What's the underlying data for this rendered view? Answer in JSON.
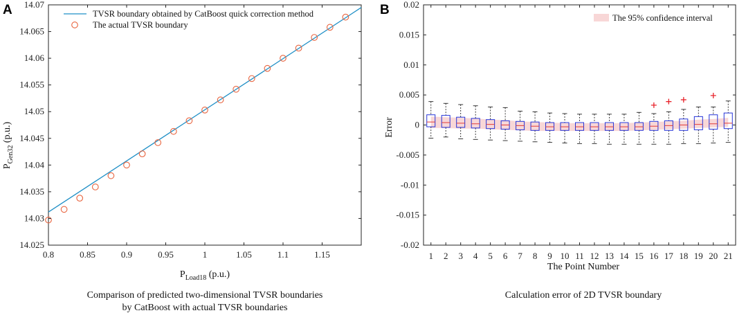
{
  "figure": {
    "panel_a_letter": "A",
    "panel_b_letter": "B",
    "caption_a_line1": "Comparison of predicted two-dimensional TVSR boundaries",
    "caption_a_line2": "by CatBoost with actual TVSR boundaries",
    "caption_b": "Calculation error of 2D TVSR boundary"
  },
  "colors": {
    "line": "#1f8fc6",
    "marker": "#e8623c",
    "box": "#2432d8",
    "median": "#e03a3a",
    "outlier": "#e8222a",
    "band": "#f6c9c9"
  },
  "chart_data": [
    {
      "type": "line",
      "title": "",
      "xlabel": "P",
      "xlabel_sub": "Load18",
      "xlabel_unit": "(p.u.)",
      "ylabel": "P",
      "ylabel_sub": "Gen32",
      "ylabel_unit": "(p.u.)",
      "xlim": [
        0.8,
        1.2
      ],
      "ylim": [
        14.025,
        14.07
      ],
      "xticks": [
        "0.8",
        "0.85",
        "0.9",
        "0.95",
        "1",
        "1.05",
        "1.1",
        "1.15"
      ],
      "yticks": [
        "14.025",
        "14.03",
        "14.035",
        "14.04",
        "14.045",
        "14.05",
        "14.055",
        "14.06",
        "14.065",
        "14.07"
      ],
      "legend": [
        "TVSR boundary obtained by CatBoost quick correction method",
        "The actual TVSR boundary"
      ],
      "series": [
        {
          "name": "TVSR boundary obtained by CatBoost quick correction method",
          "style": "line",
          "x": [
            0.8,
            1.2
          ],
          "y": [
            14.0312,
            14.0695
          ]
        },
        {
          "name": "The actual TVSR boundary",
          "style": "circle",
          "x": [
            0.8,
            0.82,
            0.84,
            0.86,
            0.88,
            0.9,
            0.92,
            0.94,
            0.96,
            0.98,
            1.0,
            1.02,
            1.04,
            1.06,
            1.08,
            1.1,
            1.12,
            1.14,
            1.16,
            1.18
          ],
          "y": [
            14.0297,
            14.0317,
            14.0338,
            14.0359,
            14.038,
            14.04,
            14.0421,
            14.0442,
            14.0463,
            14.0483,
            14.0503,
            14.0522,
            14.0542,
            14.0562,
            14.0581,
            14.06,
            14.0619,
            14.0639,
            14.0658,
            14.0677
          ]
        }
      ]
    },
    {
      "type": "box",
      "title": "",
      "xlabel": "The Point Number",
      "ylabel": "Error",
      "ylim": [
        -0.02,
        0.02
      ],
      "yticks": [
        "-0.02",
        "-0.015",
        "-0.01",
        "-0.005",
        "0",
        "0.005",
        "0.01",
        "0.015",
        "0.02"
      ],
      "categories": [
        "1",
        "2",
        "3",
        "4",
        "5",
        "6",
        "7",
        "8",
        "9",
        "10",
        "11",
        "12",
        "13",
        "14",
        "15",
        "16",
        "17",
        "18",
        "19",
        "20",
        "21"
      ],
      "legend": [
        "The 95% confidence interval"
      ],
      "confidence_band": {
        "lower": [
          -0.0005,
          -0.0005,
          -0.0006,
          -0.0006,
          -0.0007,
          -0.0008,
          -0.0009,
          -0.001,
          -0.001,
          -0.001,
          -0.001,
          -0.001,
          -0.001,
          -0.001,
          -0.0009,
          -0.0008,
          -0.0007,
          -0.0006,
          -0.0005,
          -0.0004,
          -0.0003
        ],
        "upper": [
          0.0014,
          0.0013,
          0.0012,
          0.0011,
          0.0009,
          0.0008,
          0.0006,
          0.0005,
          0.0004,
          0.0003,
          0.0003,
          0.0003,
          0.0003,
          0.0003,
          0.0004,
          0.0005,
          0.0006,
          0.0007,
          0.0009,
          0.001,
          0.0012
        ]
      },
      "whisker_low": [
        -0.0022,
        -0.002,
        -0.0023,
        -0.0024,
        -0.0025,
        -0.0026,
        -0.0027,
        -0.0028,
        -0.0029,
        -0.003,
        -0.0031,
        -0.0031,
        -0.0032,
        -0.0032,
        -0.0032,
        -0.0032,
        -0.0032,
        -0.0031,
        -0.0031,
        -0.003,
        -0.0029
      ],
      "q1": [
        -0.0003,
        -0.0004,
        -0.0004,
        -0.0005,
        -0.0006,
        -0.0007,
        -0.0008,
        -0.0009,
        -0.0009,
        -0.0009,
        -0.0009,
        -0.0009,
        -0.0009,
        -0.0009,
        -0.0009,
        -0.0009,
        -0.0009,
        -0.0009,
        -0.0008,
        -0.0007,
        -0.0006
      ],
      "median": [
        0.0005,
        0.0004,
        0.0003,
        0.0002,
        0.0001,
        0.0,
        -0.0001,
        -0.0002,
        -0.0003,
        -0.0003,
        -0.0003,
        -0.0003,
        -0.0003,
        -0.0003,
        -0.0003,
        -0.0002,
        -0.0001,
        0.0,
        0.0001,
        0.0002,
        0.0003
      ],
      "q3": [
        0.0017,
        0.0016,
        0.0013,
        0.0011,
        0.0009,
        0.0007,
        0.0006,
        0.0005,
        0.0004,
        0.0004,
        0.0004,
        0.0004,
        0.0004,
        0.0004,
        0.0004,
        0.0006,
        0.0007,
        0.001,
        0.0014,
        0.0017,
        0.002
      ],
      "whisker_high": [
        0.0039,
        0.0036,
        0.0034,
        0.0032,
        0.003,
        0.0029,
        0.0023,
        0.0022,
        0.002,
        0.0019,
        0.0018,
        0.0018,
        0.0018,
        0.0018,
        0.0021,
        0.0019,
        0.0022,
        0.0026,
        0.003,
        0.003,
        0.004
      ],
      "outliers": [
        {
          "index": 16,
          "value": 0.0033
        },
        {
          "index": 17,
          "value": 0.0039
        },
        {
          "index": 18,
          "value": 0.0042
        },
        {
          "index": 20,
          "value": 0.0049
        }
      ]
    }
  ]
}
